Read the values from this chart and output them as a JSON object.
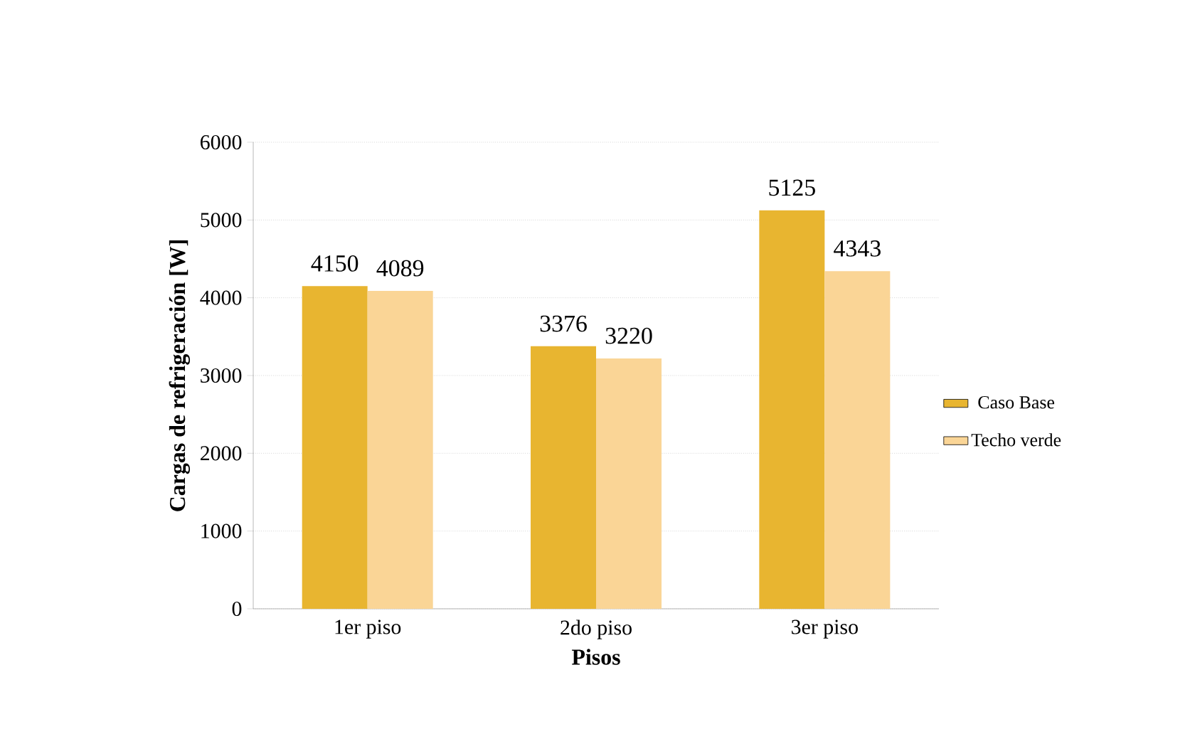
{
  "chart_data": {
    "type": "bar",
    "xlabel": "Pisos",
    "ylabel": "Cargas de refrigeración [W]",
    "categories": [
      "1er piso",
      "2do piso",
      "3er piso"
    ],
    "series": [
      {
        "name": "Caso Base",
        "color": "#e8b530",
        "values": [
          4150,
          3376,
          5125
        ]
      },
      {
        "name": "Techo verde",
        "color": "#fad596",
        "values": [
          4089,
          3220,
          4343
        ]
      }
    ],
    "ylim": [
      0,
      6000
    ],
    "yticks": [
      0,
      1000,
      2000,
      3000,
      4000,
      5000,
      6000
    ],
    "grid": "y",
    "legend": "right",
    "data_labels": true
  }
}
